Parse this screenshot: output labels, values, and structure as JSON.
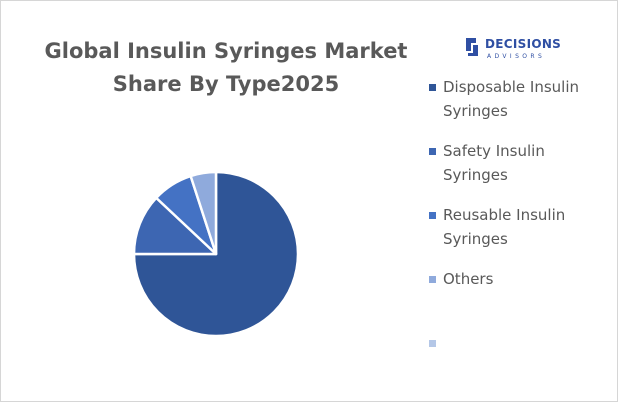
{
  "chart_data": {
    "type": "pie",
    "title_lines": [
      "Global Insulin Syringes Market",
      "Share By Type2025"
    ],
    "categories": [
      "Disposable Insulin Syringes",
      "Safety Insulin Syringes",
      "Reusable Insulin Syringes",
      "Others",
      ""
    ],
    "values": [
      75,
      12,
      8,
      5,
      0
    ],
    "colors": [
      "#2f5597",
      "#3d66b2",
      "#4472c4",
      "#8faadc",
      "#b4c7e7"
    ],
    "legend_position": "right",
    "start_angle_deg": 0,
    "direction": "clockwise"
  },
  "logo": {
    "brand": "DECISIONS",
    "sub": "ADVISORS",
    "color": "#2f4fa3"
  }
}
